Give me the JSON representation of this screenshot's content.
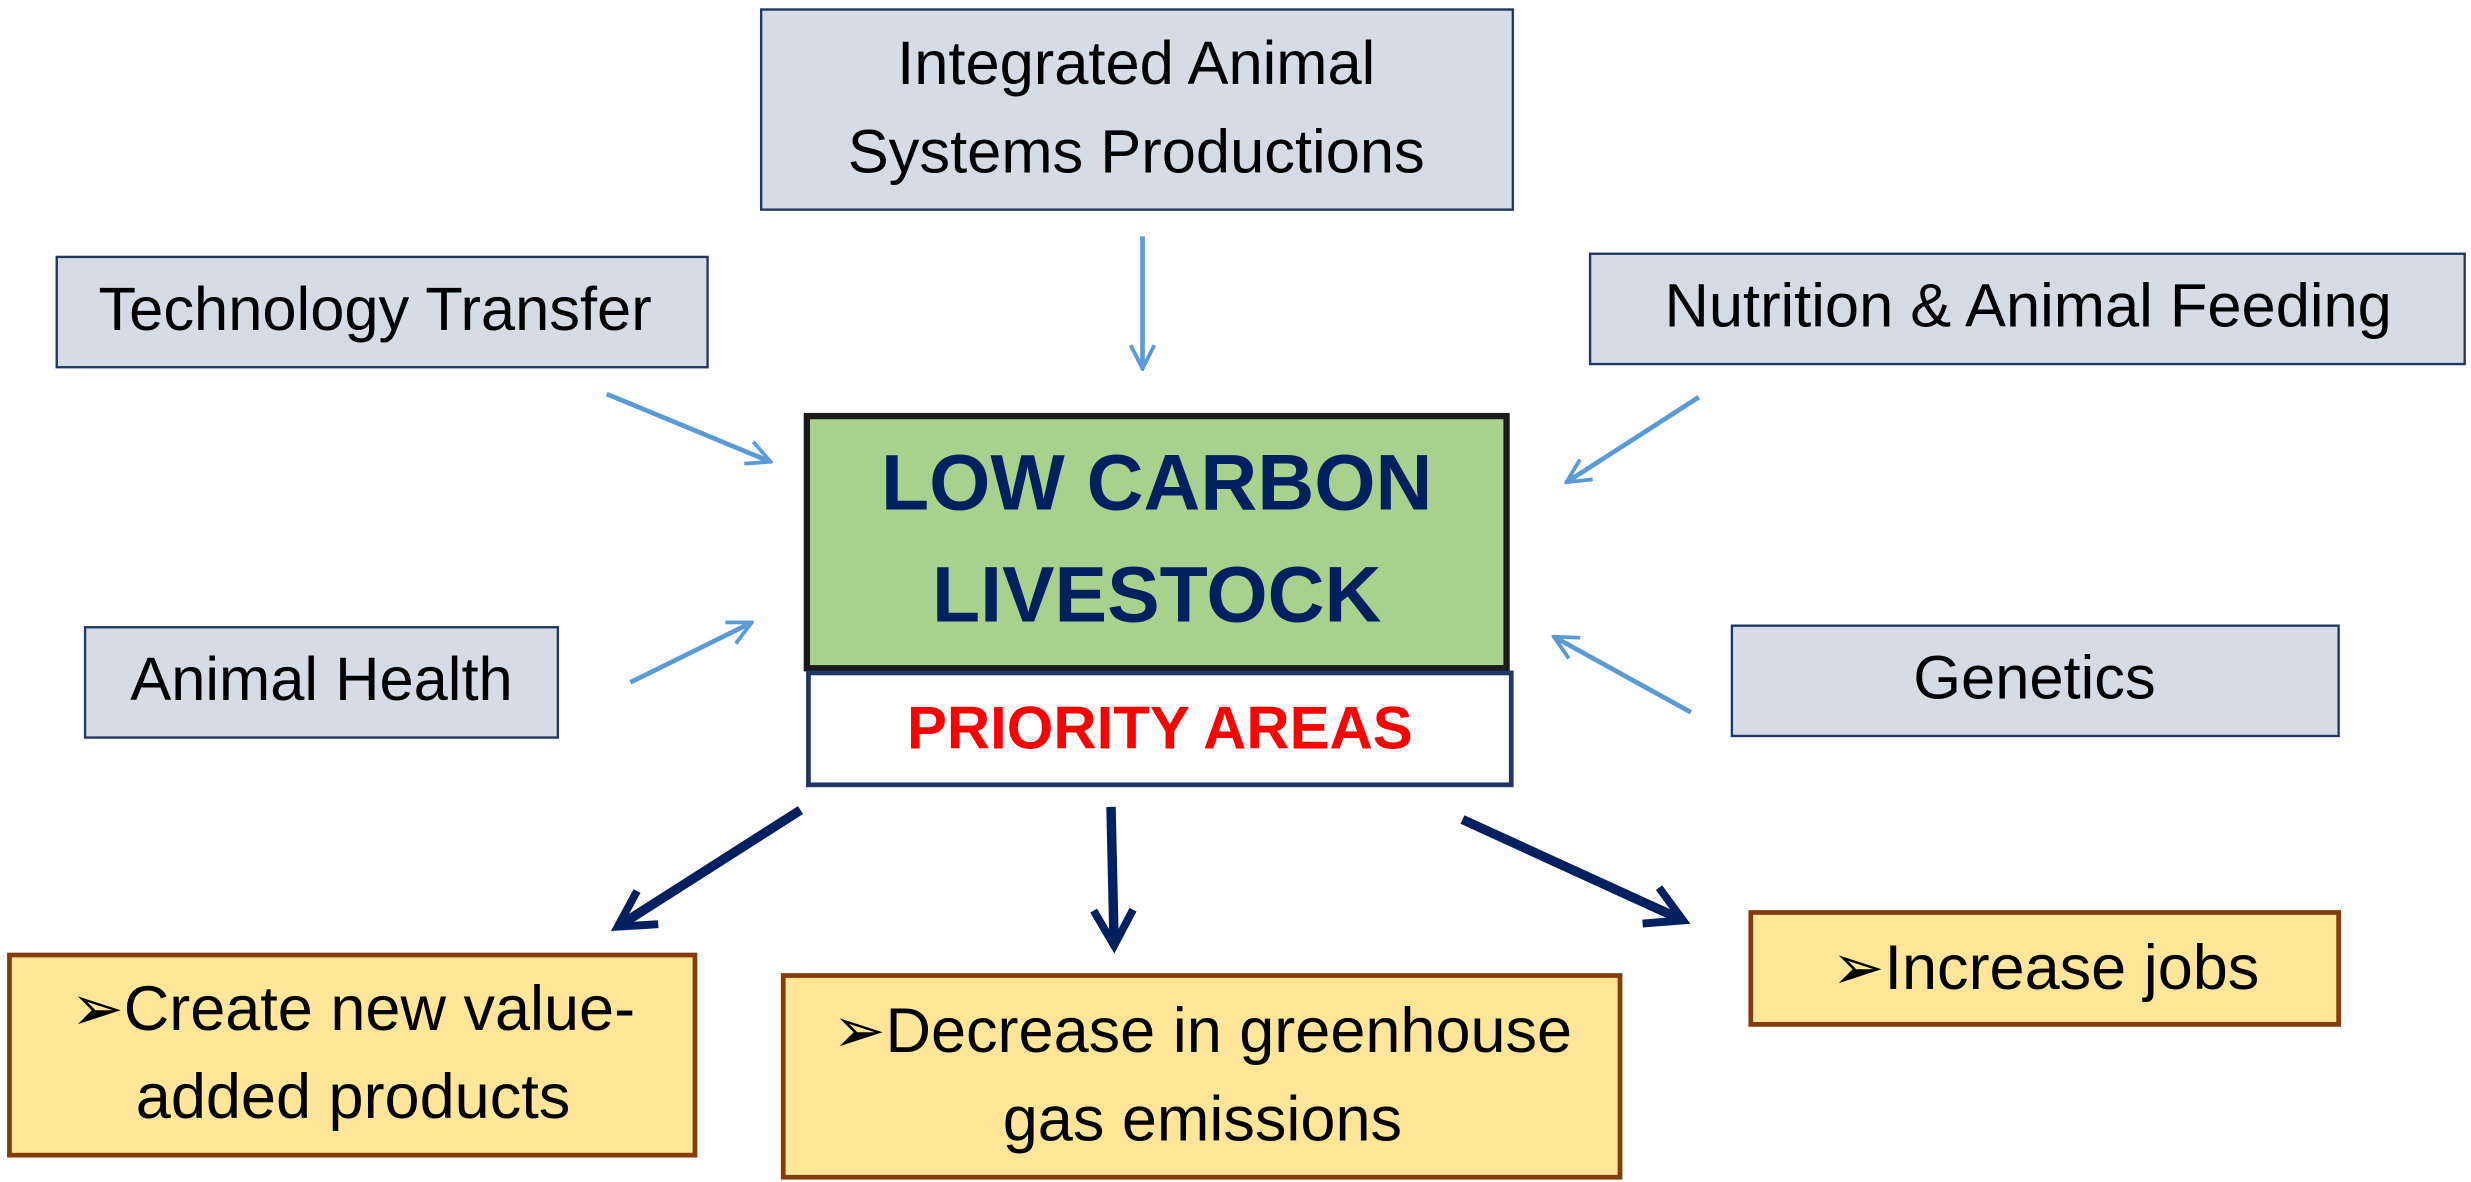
{
  "center": {
    "title_lines": [
      "LOW CARBON",
      "LIVESTOCK"
    ],
    "subtitle": "PRIORITY AREAS"
  },
  "inputs": [
    {
      "lines": [
        "Integrated Animal",
        "Systems Productions"
      ]
    },
    {
      "lines": [
        "Technology Transfer"
      ]
    },
    {
      "lines": [
        "Nutrition & Animal Feeding"
      ]
    },
    {
      "lines": [
        "Animal Health"
      ]
    },
    {
      "lines": [
        "Genetics"
      ]
    }
  ],
  "outputs": [
    {
      "lines": [
        "➢Create new value-",
        "added products"
      ]
    },
    {
      "lines": [
        "➢Decrease in greenhouse",
        "gas emissions"
      ]
    },
    {
      "lines": [
        "➢Increase  jobs"
      ]
    }
  ]
}
